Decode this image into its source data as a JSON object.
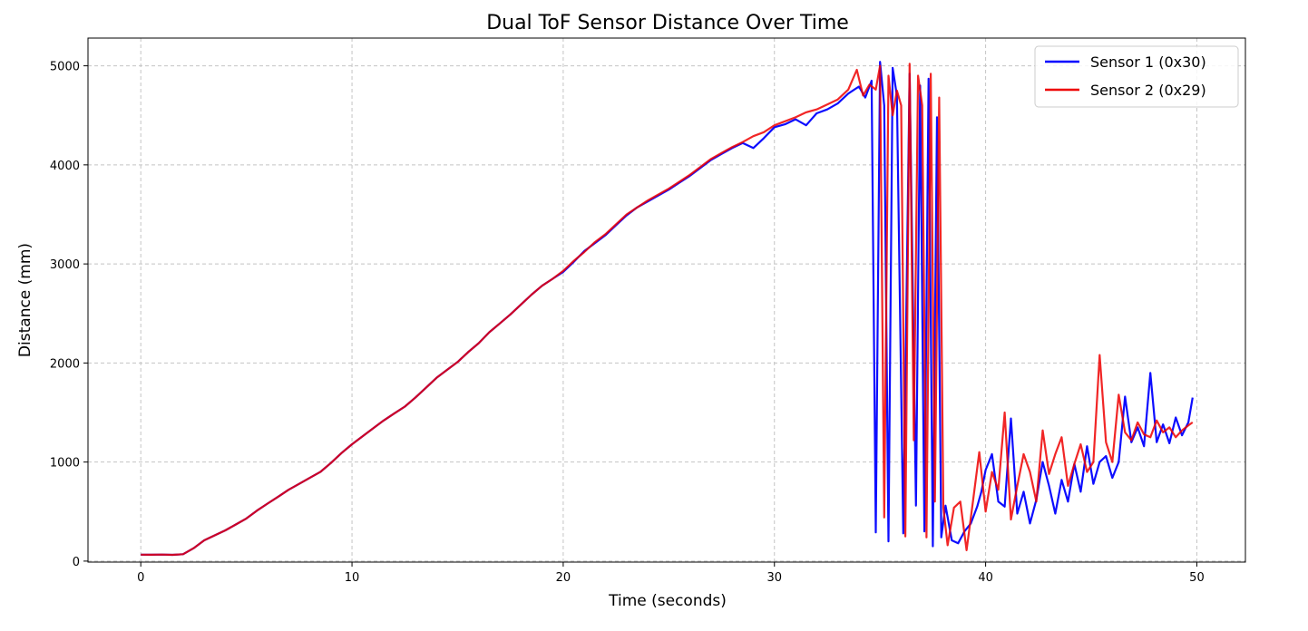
{
  "chart_data": {
    "type": "line",
    "title": "Dual ToF Sensor Distance Over Time",
    "xlabel": "Time (seconds)",
    "ylabel": "Distance (mm)",
    "xlim": [
      -2.5,
      52.3
    ],
    "ylim": [
      -10,
      5280
    ],
    "x_ticks": [
      0,
      10,
      20,
      30,
      40,
      50
    ],
    "y_ticks": [
      0,
      1000,
      2000,
      3000,
      4000,
      5000
    ],
    "grid": true,
    "legend_position": "top-right",
    "series": [
      {
        "name": "Sensor 1 (0x30)",
        "color": "#0000ff",
        "points": [
          [
            0,
            65
          ],
          [
            0.5,
            64
          ],
          [
            1,
            66
          ],
          [
            1.5,
            63
          ],
          [
            2,
            70
          ],
          [
            2.5,
            130
          ],
          [
            3,
            210
          ],
          [
            3.5,
            260
          ],
          [
            4,
            310
          ],
          [
            4.5,
            370
          ],
          [
            5,
            430
          ],
          [
            5.5,
            510
          ],
          [
            6,
            580
          ],
          [
            6.5,
            650
          ],
          [
            7,
            720
          ],
          [
            7.5,
            780
          ],
          [
            8,
            840
          ],
          [
            8.5,
            900
          ],
          [
            9,
            990
          ],
          [
            9.5,
            1090
          ],
          [
            10,
            1180
          ],
          [
            10.5,
            1260
          ],
          [
            11,
            1340
          ],
          [
            11.5,
            1420
          ],
          [
            12,
            1490
          ],
          [
            12.5,
            1560
          ],
          [
            13,
            1650
          ],
          [
            13.5,
            1750
          ],
          [
            14,
            1850
          ],
          [
            14.5,
            1930
          ],
          [
            15,
            2010
          ],
          [
            15.5,
            2110
          ],
          [
            16,
            2200
          ],
          [
            16.5,
            2310
          ],
          [
            17,
            2400
          ],
          [
            17.5,
            2490
          ],
          [
            18,
            2590
          ],
          [
            18.5,
            2690
          ],
          [
            19,
            2780
          ],
          [
            19.5,
            2850
          ],
          [
            20,
            2920
          ],
          [
            20.5,
            3020
          ],
          [
            21,
            3130
          ],
          [
            21.5,
            3210
          ],
          [
            22,
            3290
          ],
          [
            22.5,
            3390
          ],
          [
            23,
            3490
          ],
          [
            23.5,
            3570
          ],
          [
            24,
            3630
          ],
          [
            24.5,
            3690
          ],
          [
            25,
            3750
          ],
          [
            25.5,
            3820
          ],
          [
            26,
            3890
          ],
          [
            26.5,
            3970
          ],
          [
            27,
            4050
          ],
          [
            27.5,
            4110
          ],
          [
            28,
            4170
          ],
          [
            28.5,
            4220
          ],
          [
            29,
            4170
          ],
          [
            29.5,
            4270
          ],
          [
            30,
            4380
          ],
          [
            30.5,
            4410
          ],
          [
            31,
            4460
          ],
          [
            31.5,
            4400
          ],
          [
            32,
            4520
          ],
          [
            32.5,
            4560
          ],
          [
            33,
            4620
          ],
          [
            33.5,
            4720
          ],
          [
            34,
            4790
          ],
          [
            34.3,
            4680
          ],
          [
            34.6,
            4850
          ],
          [
            34.8,
            290
          ],
          [
            35,
            5040
          ],
          [
            35.2,
            4600
          ],
          [
            35.4,
            200
          ],
          [
            35.6,
            4980
          ],
          [
            35.8,
            4700
          ],
          [
            36.1,
            280
          ],
          [
            36.4,
            4920
          ],
          [
            36.7,
            560
          ],
          [
            36.9,
            4800
          ],
          [
            37.1,
            300
          ],
          [
            37.3,
            4870
          ],
          [
            37.5,
            150
          ],
          [
            37.7,
            4480
          ],
          [
            37.9,
            240
          ],
          [
            38.1,
            560
          ],
          [
            38.4,
            210
          ],
          [
            38.7,
            180
          ],
          [
            39,
            300
          ],
          [
            39.3,
            380
          ],
          [
            39.6,
            550
          ],
          [
            39.8,
            700
          ],
          [
            40,
            920
          ],
          [
            40.3,
            1080
          ],
          [
            40.6,
            600
          ],
          [
            40.9,
            550
          ],
          [
            41.2,
            1440
          ],
          [
            41.5,
            480
          ],
          [
            41.8,
            700
          ],
          [
            42.1,
            380
          ],
          [
            42.4,
            620
          ],
          [
            42.7,
            1000
          ],
          [
            43,
            760
          ],
          [
            43.3,
            480
          ],
          [
            43.6,
            820
          ],
          [
            43.9,
            600
          ],
          [
            44.2,
            980
          ],
          [
            44.5,
            700
          ],
          [
            44.8,
            1160
          ],
          [
            45.1,
            780
          ],
          [
            45.4,
            1000
          ],
          [
            45.7,
            1060
          ],
          [
            46,
            840
          ],
          [
            46.3,
            1000
          ],
          [
            46.6,
            1660
          ],
          [
            46.9,
            1200
          ],
          [
            47.2,
            1350
          ],
          [
            47.5,
            1160
          ],
          [
            47.8,
            1900
          ],
          [
            48.1,
            1200
          ],
          [
            48.4,
            1380
          ],
          [
            48.7,
            1190
          ],
          [
            49,
            1450
          ],
          [
            49.3,
            1270
          ],
          [
            49.6,
            1400
          ],
          [
            49.8,
            1650
          ]
        ]
      },
      {
        "name": "Sensor 2 (0x29)",
        "color": "#ee0000",
        "points": [
          [
            0,
            65
          ],
          [
            0.5,
            64
          ],
          [
            1,
            66
          ],
          [
            1.5,
            63
          ],
          [
            2,
            70
          ],
          [
            2.5,
            130
          ],
          [
            3,
            210
          ],
          [
            3.5,
            260
          ],
          [
            4,
            310
          ],
          [
            4.5,
            370
          ],
          [
            5,
            430
          ],
          [
            5.5,
            510
          ],
          [
            6,
            580
          ],
          [
            6.5,
            650
          ],
          [
            7,
            720
          ],
          [
            7.5,
            780
          ],
          [
            8,
            840
          ],
          [
            8.5,
            900
          ],
          [
            9,
            990
          ],
          [
            9.5,
            1090
          ],
          [
            10,
            1180
          ],
          [
            10.5,
            1260
          ],
          [
            11,
            1340
          ],
          [
            11.5,
            1420
          ],
          [
            12,
            1490
          ],
          [
            12.5,
            1560
          ],
          [
            13,
            1650
          ],
          [
            13.5,
            1750
          ],
          [
            14,
            1850
          ],
          [
            14.5,
            1930
          ],
          [
            15,
            2010
          ],
          [
            15.5,
            2110
          ],
          [
            16,
            2200
          ],
          [
            16.5,
            2310
          ],
          [
            17,
            2400
          ],
          [
            17.5,
            2490
          ],
          [
            18,
            2590
          ],
          [
            18.5,
            2690
          ],
          [
            19,
            2780
          ],
          [
            19.5,
            2850
          ],
          [
            20,
            2930
          ],
          [
            20.5,
            3030
          ],
          [
            21,
            3120
          ],
          [
            21.5,
            3220
          ],
          [
            22,
            3300
          ],
          [
            22.5,
            3400
          ],
          [
            23,
            3500
          ],
          [
            23.5,
            3570
          ],
          [
            24,
            3640
          ],
          [
            24.5,
            3700
          ],
          [
            25,
            3760
          ],
          [
            25.5,
            3830
          ],
          [
            26,
            3900
          ],
          [
            26.5,
            3980
          ],
          [
            27,
            4060
          ],
          [
            27.5,
            4120
          ],
          [
            28,
            4180
          ],
          [
            28.5,
            4230
          ],
          [
            29,
            4290
          ],
          [
            29.5,
            4330
          ],
          [
            30,
            4400
          ],
          [
            30.5,
            4440
          ],
          [
            31,
            4480
          ],
          [
            31.5,
            4530
          ],
          [
            32,
            4560
          ],
          [
            32.5,
            4610
          ],
          [
            33,
            4660
          ],
          [
            33.5,
            4760
          ],
          [
            33.9,
            4960
          ],
          [
            34.2,
            4700
          ],
          [
            34.5,
            4810
          ],
          [
            34.8,
            4760
          ],
          [
            35,
            5000
          ],
          [
            35.2,
            440
          ],
          [
            35.4,
            4900
          ],
          [
            35.6,
            4500
          ],
          [
            35.8,
            4750
          ],
          [
            36,
            4600
          ],
          [
            36.2,
            250
          ],
          [
            36.4,
            5020
          ],
          [
            36.6,
            1220
          ],
          [
            36.8,
            4900
          ],
          [
            37,
            4600
          ],
          [
            37.2,
            240
          ],
          [
            37.4,
            4920
          ],
          [
            37.6,
            600
          ],
          [
            37.8,
            4680
          ],
          [
            38,
            540
          ],
          [
            38.2,
            160
          ],
          [
            38.5,
            540
          ],
          [
            38.8,
            600
          ],
          [
            39.1,
            110
          ],
          [
            39.4,
            600
          ],
          [
            39.7,
            1100
          ],
          [
            40,
            500
          ],
          [
            40.3,
            900
          ],
          [
            40.6,
            720
          ],
          [
            40.9,
            1500
          ],
          [
            41.2,
            420
          ],
          [
            41.5,
            760
          ],
          [
            41.8,
            1080
          ],
          [
            42.1,
            900
          ],
          [
            42.4,
            600
          ],
          [
            42.7,
            1320
          ],
          [
            43,
            880
          ],
          [
            43.3,
            1080
          ],
          [
            43.6,
            1250
          ],
          [
            43.9,
            760
          ],
          [
            44.2,
            980
          ],
          [
            44.5,
            1180
          ],
          [
            44.8,
            900
          ],
          [
            45.1,
            1000
          ],
          [
            45.4,
            2080
          ],
          [
            45.7,
            1200
          ],
          [
            46,
            1000
          ],
          [
            46.3,
            1680
          ],
          [
            46.6,
            1300
          ],
          [
            46.9,
            1220
          ],
          [
            47.2,
            1400
          ],
          [
            47.5,
            1280
          ],
          [
            47.8,
            1250
          ],
          [
            48.1,
            1420
          ],
          [
            48.4,
            1300
          ],
          [
            48.7,
            1350
          ],
          [
            49,
            1250
          ],
          [
            49.3,
            1320
          ],
          [
            49.6,
            1370
          ],
          [
            49.8,
            1400
          ]
        ]
      }
    ]
  }
}
